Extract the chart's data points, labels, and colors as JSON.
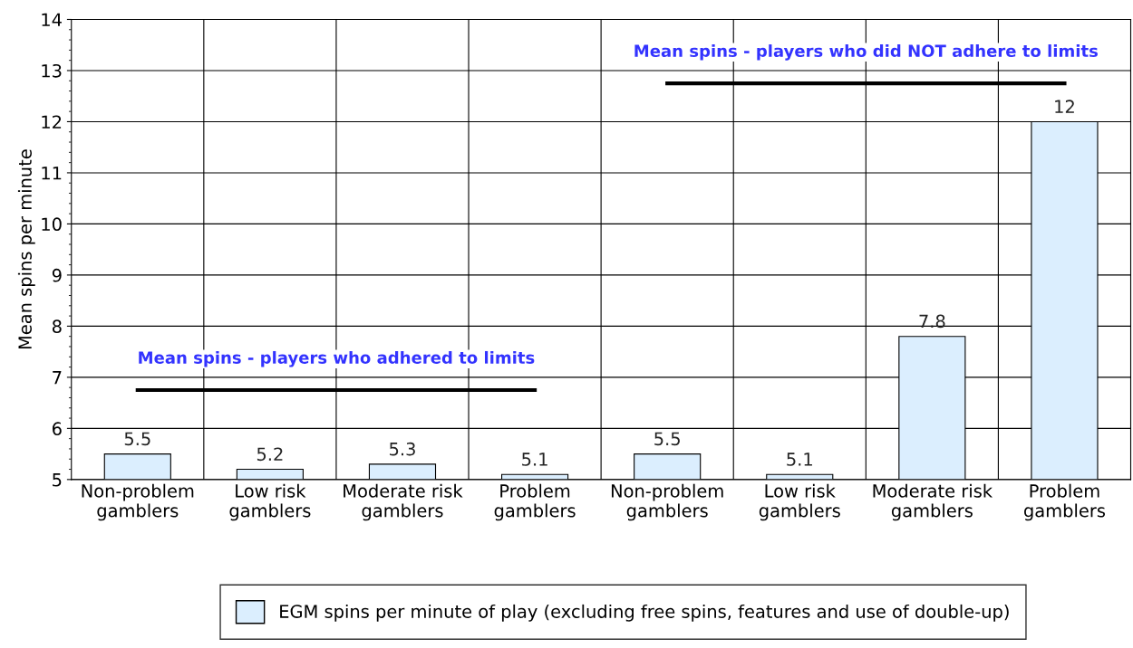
{
  "chart_data": {
    "type": "bar",
    "ylabel": "Mean spins per minute",
    "categories": [
      "Non-problem\ngamblers",
      "Low risk\ngamblers",
      "Moderate risk\ngamblers",
      "Problem\ngamblers",
      "Non-problem\ngamblers",
      "Low risk\ngamblers",
      "Moderate risk\ngamblers",
      "Problem\ngamblers"
    ],
    "series": [
      {
        "name": "EGM spins per minute of play (excluding free spins, features and use of double-up)",
        "color": "#dbeefe",
        "values": [
          5.5,
          5.2,
          5.3,
          5.1,
          5.5,
          5.1,
          7.8,
          12
        ],
        "data_labels": true
      },
      {
        "name": "Mean spins - players who adhered to limits",
        "type": "line",
        "color": "#000000",
        "values": [
          6.75,
          6.75,
          6.75,
          6.75,
          null,
          null,
          null,
          null
        ]
      },
      {
        "name": "Mean spins - players who did NOT adhere to limits",
        "type": "line",
        "color": "#000000",
        "values": [
          null,
          null,
          null,
          null,
          12.75,
          12.75,
          12.75,
          12.75
        ]
      }
    ],
    "ylim": [
      5,
      14
    ],
    "yticks": [
      5,
      6,
      7,
      8,
      9,
      10,
      11,
      12,
      13,
      14
    ],
    "grid": true,
    "legend": "bottom"
  }
}
